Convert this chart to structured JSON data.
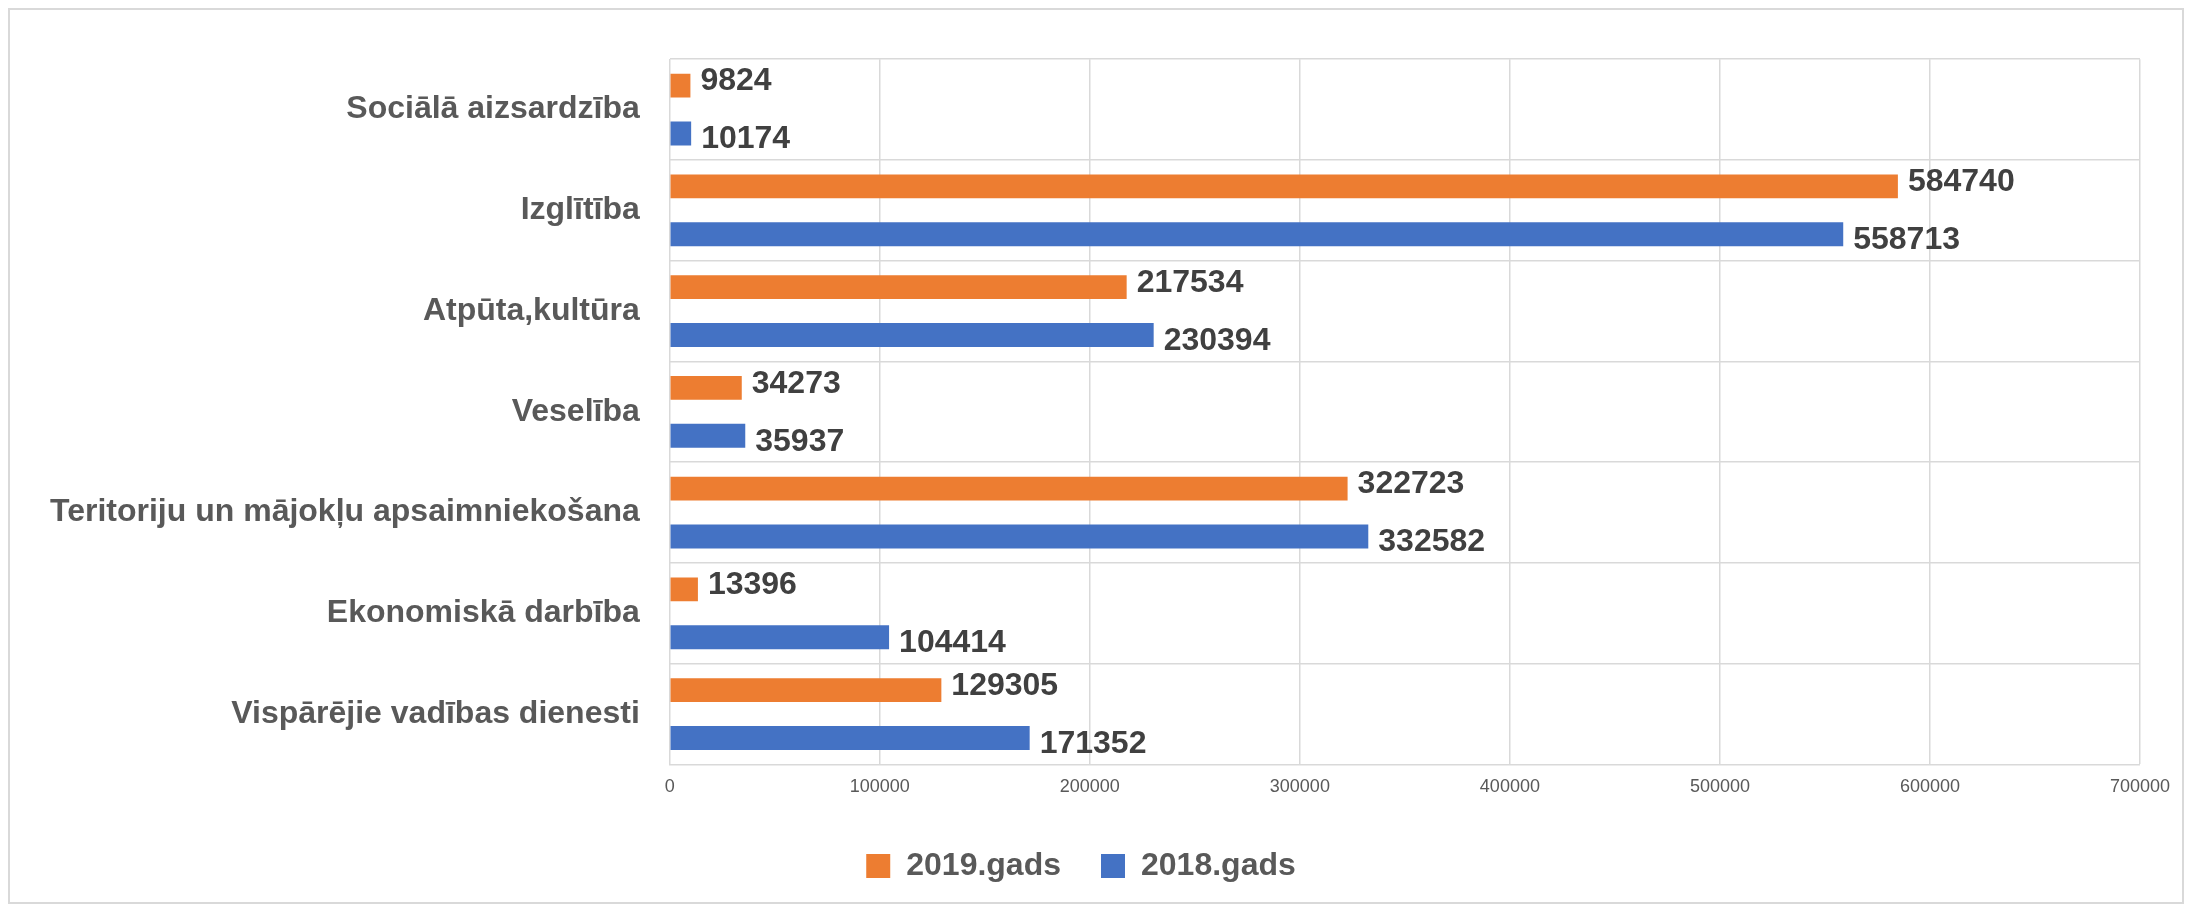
{
  "chart_data": {
    "type": "bar",
    "orientation": "horizontal",
    "categories": [
      "Sociālā aizsardzība",
      "Izglītība",
      "Atpūta,kultūra",
      "Veselība",
      "Teritoriju un mājokļu apsaimniekošana",
      "Ekonomiskā darbība",
      "Vispārējie vadības dienesti"
    ],
    "series": [
      {
        "name": "2019.gads",
        "color": "#ed7d31",
        "values": [
          9824,
          584740,
          217534,
          34273,
          322723,
          13396,
          129305
        ]
      },
      {
        "name": "2018.gads",
        "color": "#4472c4",
        "values": [
          10174,
          558713,
          230394,
          35937,
          332582,
          104414,
          171352
        ]
      }
    ],
    "xlim": [
      0,
      700000
    ],
    "xticks": [
      0,
      100000,
      200000,
      300000,
      400000,
      500000,
      600000,
      700000
    ],
    "grid": true,
    "legend": "bottom",
    "data_labels": true
  }
}
